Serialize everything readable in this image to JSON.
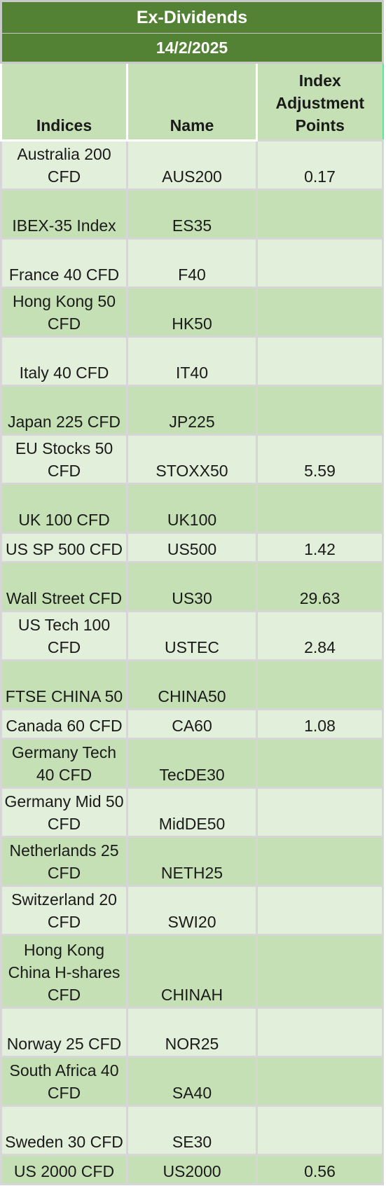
{
  "header": {
    "title": "Ex-Dividends",
    "date": "14/2/2025"
  },
  "columns": {
    "indices": "Indices",
    "name": "Name",
    "adjustment": "Index Adjustment Points"
  },
  "rows": [
    {
      "index": "Australia 200 CFD",
      "name": "AUS200",
      "points": "0.17"
    },
    {
      "index": "IBEX-35 Index",
      "name": "ES35",
      "points": ""
    },
    {
      "index": "France 40 CFD",
      "name": "F40",
      "points": ""
    },
    {
      "index": "Hong Kong 50 CFD",
      "name": "HK50",
      "points": ""
    },
    {
      "index": "Italy 40 CFD",
      "name": "IT40",
      "points": ""
    },
    {
      "index": "Japan 225 CFD",
      "name": "JP225",
      "points": ""
    },
    {
      "index": "EU Stocks 50 CFD",
      "name": "STOXX50",
      "points": "5.59"
    },
    {
      "index": "UK 100 CFD",
      "name": "UK100",
      "points": ""
    },
    {
      "index": "US SP 500 CFD",
      "name": "US500",
      "points": "1.42"
    },
    {
      "index": "Wall Street CFD",
      "name": "US30",
      "points": "29.63"
    },
    {
      "index": "US Tech 100 CFD",
      "name": "USTEC",
      "points": "2.84"
    },
    {
      "index": "FTSE CHINA 50",
      "name": "CHINA50",
      "points": ""
    },
    {
      "index": "Canada 60 CFD",
      "name": "CA60",
      "points": "1.08"
    },
    {
      "index": "Germany Tech 40 CFD",
      "name": "TecDE30",
      "points": ""
    },
    {
      "index": "Germany Mid 50 CFD",
      "name": "MidDE50",
      "points": ""
    },
    {
      "index": "Netherlands 25 CFD",
      "name": "NETH25",
      "points": ""
    },
    {
      "index": "Switzerland 20 CFD",
      "name": "SWI20",
      "points": ""
    },
    {
      "index": "Hong Kong China H-shares CFD",
      "name": "CHINAH",
      "points": ""
    },
    {
      "index": "Norway 25 CFD",
      "name": "NOR25",
      "points": ""
    },
    {
      "index": "South Africa 40 CFD",
      "name": "SA40",
      "points": ""
    },
    {
      "index": "Sweden 30 CFD",
      "name": "SE30",
      "points": ""
    },
    {
      "index": "US 2000 CFD",
      "name": "US2000",
      "points": "0.56"
    }
  ],
  "colors": {
    "title_bg": "#548235",
    "header_bg": "#c5e0b4",
    "band_light": "#e2efda",
    "band_dark": "#c5e0b4",
    "highlight_border": "#5fe3a1"
  }
}
